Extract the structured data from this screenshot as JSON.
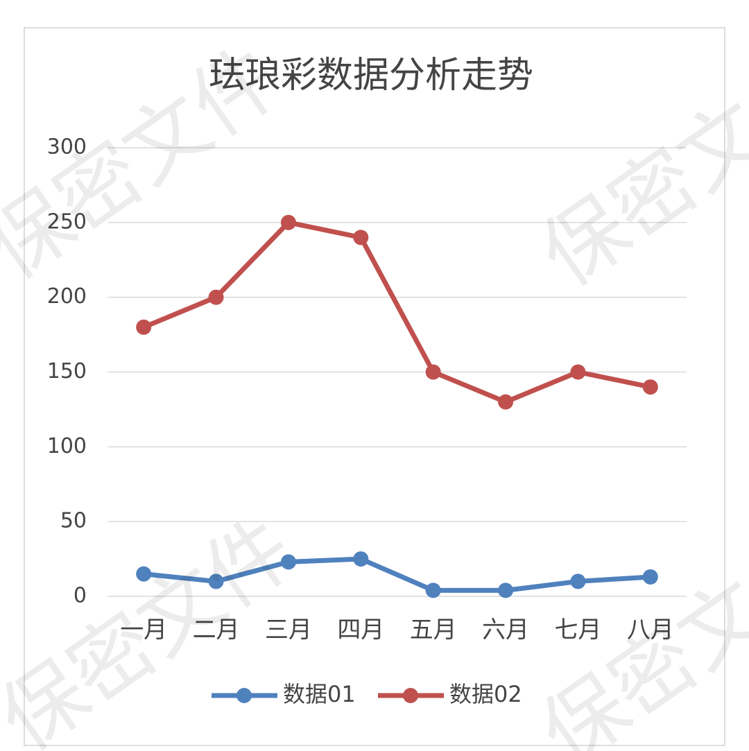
{
  "chart_data": {
    "type": "line",
    "title": "珐琅彩数据分析走势",
    "categories": [
      "一月",
      "二月",
      "三月",
      "四月",
      "五月",
      "六月",
      "七月",
      "八月"
    ],
    "series": [
      {
        "name": "数据01",
        "color": "#4f81bd",
        "values": [
          15,
          10,
          23,
          25,
          4,
          4,
          10,
          13
        ]
      },
      {
        "name": "数据02",
        "color": "#c0504d",
        "values": [
          180,
          200,
          250,
          240,
          150,
          130,
          150,
          140
        ]
      }
    ],
    "ylim": [
      0,
      300
    ],
    "yticks": [
      0,
      50,
      100,
      150,
      200,
      250,
      300
    ],
    "grid": true,
    "legend": "bottom"
  },
  "watermark": "保密文件"
}
